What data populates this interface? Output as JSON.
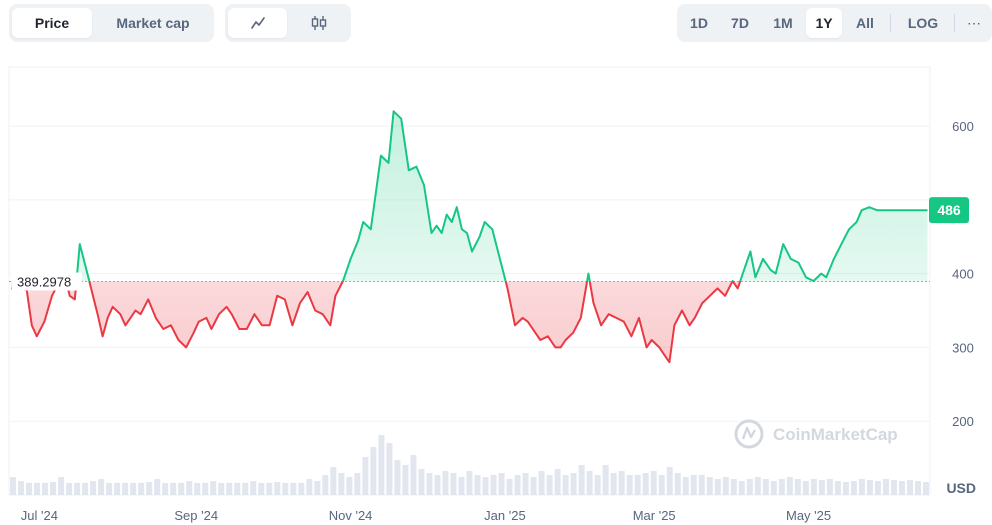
{
  "tabs": {
    "metric": [
      {
        "label": "Price",
        "active": true
      },
      {
        "label": "Market cap",
        "active": false
      }
    ],
    "chart_type_icons": [
      "line-chart-icon",
      "candlestick-icon"
    ],
    "ranges": [
      {
        "label": "1D",
        "active": false
      },
      {
        "label": "7D",
        "active": false
      },
      {
        "label": "1M",
        "active": false
      },
      {
        "label": "1Y",
        "active": true
      },
      {
        "label": "All",
        "active": false
      }
    ],
    "log_label": "LOG",
    "more_label": "⋯"
  },
  "watermark": "CoinMarketCap",
  "colors": {
    "up": "#16c784",
    "down": "#ea3943",
    "badge": "#16c784"
  },
  "chart_data": {
    "type": "line",
    "currency_label": "USD",
    "baseline": {
      "value": 389.2978,
      "label": "389.2978"
    },
    "last_price": {
      "value": 486,
      "label": "486"
    },
    "ylim": [
      100,
      680
    ],
    "yticks": [
      200,
      300,
      400,
      600
    ],
    "x_tick_labels": [
      "Jul '24",
      "Sep '24",
      "Nov '24",
      "Jan '25",
      "Mar '25",
      "May '25"
    ],
    "x_tick_dates": [
      "2024-07-01",
      "2024-09-01",
      "2024-11-01",
      "2025-01-01",
      "2025-03-01",
      "2025-05-01"
    ],
    "xlim": [
      "2024-06-19",
      "2025-06-18"
    ],
    "series": [
      {
        "x": [
          "2024-06-20",
          "2024-06-26",
          "2024-06-28",
          "2024-06-30",
          "2024-07-03",
          "2024-07-06",
          "2024-07-09",
          "2024-07-11",
          "2024-07-13",
          "2024-07-15",
          "2024-07-17",
          "2024-07-20",
          "2024-07-24",
          "2024-07-26",
          "2024-07-28",
          "2024-07-30",
          "2024-08-02",
          "2024-08-04",
          "2024-08-06",
          "2024-08-08",
          "2024-08-10",
          "2024-08-13",
          "2024-08-16",
          "2024-08-19",
          "2024-08-22",
          "2024-08-25",
          "2024-08-28",
          "2024-08-31",
          "2024-09-02",
          "2024-09-05",
          "2024-09-07",
          "2024-09-10",
          "2024-09-13",
          "2024-09-15",
          "2024-09-18",
          "2024-09-21",
          "2024-09-24",
          "2024-09-27",
          "2024-09-30",
          "2024-10-03",
          "2024-10-06",
          "2024-10-09",
          "2024-10-12",
          "2024-10-15",
          "2024-10-18",
          "2024-10-21",
          "2024-10-24",
          "2024-10-26",
          "2024-10-29",
          "2024-11-01",
          "2024-11-04",
          "2024-11-06",
          "2024-11-09",
          "2024-11-11",
          "2024-11-13",
          "2024-11-16",
          "2024-11-18",
          "2024-11-21",
          "2024-11-24",
          "2024-11-27",
          "2024-11-30",
          "2024-12-03",
          "2024-12-05",
          "2024-12-07",
          "2024-12-09",
          "2024-12-11",
          "2024-12-13",
          "2024-12-15",
          "2024-12-17",
          "2024-12-19",
          "2024-12-22",
          "2024-12-24",
          "2024-12-27",
          "2024-12-30",
          "2025-01-02",
          "2025-01-05",
          "2025-01-08",
          "2025-01-10",
          "2025-01-13",
          "2025-01-15",
          "2025-01-18",
          "2025-01-21",
          "2025-01-23",
          "2025-01-25",
          "2025-01-28",
          "2025-01-31",
          "2025-02-03",
          "2025-02-05",
          "2025-02-08",
          "2025-02-11",
          "2025-02-14",
          "2025-02-17",
          "2025-02-20",
          "2025-02-23",
          "2025-02-26",
          "2025-02-28",
          "2025-03-03",
          "2025-03-05",
          "2025-03-07",
          "2025-03-09",
          "2025-03-12",
          "2025-03-15",
          "2025-03-17",
          "2025-03-20",
          "2025-03-23",
          "2025-03-26",
          "2025-03-29",
          "2025-04-01",
          "2025-04-03",
          "2025-04-06",
          "2025-04-08",
          "2025-04-10",
          "2025-04-13",
          "2025-04-16",
          "2025-04-18",
          "2025-04-21",
          "2025-04-24",
          "2025-04-27",
          "2025-04-30",
          "2025-05-03",
          "2025-05-06",
          "2025-05-08",
          "2025-05-11",
          "2025-05-14",
          "2025-05-17",
          "2025-05-20",
          "2025-05-22",
          "2025-05-25",
          "2025-05-28",
          "2025-05-31",
          "2025-06-03",
          "2025-06-06",
          "2025-06-08",
          "2025-06-11",
          "2025-06-14",
          "2025-06-17"
        ],
        "values": [
          380,
          378,
          330,
          315,
          335,
          370,
          390,
          400,
          370,
          365,
          440,
          400,
          345,
          315,
          340,
          355,
          345,
          330,
          340,
          350,
          345,
          365,
          340,
          325,
          330,
          310,
          300,
          320,
          335,
          340,
          325,
          345,
          355,
          345,
          325,
          325,
          345,
          330,
          330,
          370,
          365,
          330,
          360,
          375,
          350,
          345,
          330,
          370,
          390,
          420,
          445,
          470,
          460,
          510,
          560,
          550,
          620,
          610,
          540,
          545,
          520,
          455,
          465,
          455,
          480,
          470,
          490,
          460,
          455,
          430,
          450,
          470,
          460,
          420,
          380,
          330,
          340,
          335,
          320,
          310,
          315,
          300,
          300,
          310,
          320,
          340,
          400,
          360,
          330,
          345,
          340,
          335,
          315,
          340,
          300,
          310,
          300,
          290,
          280,
          330,
          350,
          330,
          340,
          360,
          370,
          380,
          370,
          390,
          380,
          410,
          430,
          395,
          420,
          405,
          400,
          440,
          420,
          415,
          395,
          390,
          400,
          395,
          420,
          440,
          460,
          470,
          486,
          490,
          486,
          486,
          486,
          486,
          486,
          486,
          486,
          486
        ]
      }
    ],
    "volume": [
      18,
      14,
      12,
      12,
      12,
      13,
      18,
      12,
      12,
      12,
      14,
      16,
      12,
      12,
      12,
      12,
      12,
      13,
      16,
      12,
      12,
      12,
      14,
      12,
      12,
      14,
      12,
      12,
      12,
      12,
      14,
      12,
      12,
      13,
      12,
      12,
      12,
      16,
      14,
      20,
      28,
      22,
      18,
      22,
      38,
      48,
      60,
      52,
      35,
      30,
      40,
      26,
      22,
      20,
      24,
      22,
      18,
      24,
      20,
      18,
      20,
      22,
      16,
      20,
      22,
      18,
      24,
      20,
      26,
      20,
      22,
      30,
      24,
      20,
      30,
      22,
      24,
      20,
      20,
      22,
      24,
      20,
      28,
      22,
      18,
      20,
      20,
      18,
      16,
      18,
      16,
      14,
      16,
      18,
      16,
      14,
      16,
      18,
      16,
      14,
      16,
      15,
      16,
      14,
      13,
      14,
      16,
      15,
      14,
      16,
      15,
      14,
      15,
      14,
      13
    ]
  }
}
